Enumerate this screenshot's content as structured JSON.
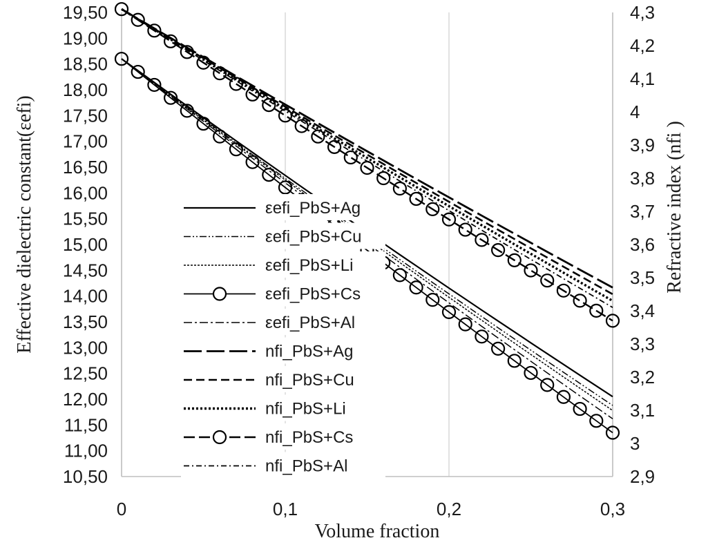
{
  "chart_data": {
    "type": "line",
    "xlabel": "Volume fraction",
    "ylabel": "Effective dielectric constant(εefi)",
    "y2label": "Refractive index (nfi )",
    "xlim": [
      0,
      0.3
    ],
    "ylim": [
      10.5,
      19.5
    ],
    "y2lim": [
      2.9,
      4.3
    ],
    "grid": "vertical",
    "legend_position": "center-left",
    "x_ticks": [
      "0",
      "0,1",
      "0,2",
      "0,3"
    ],
    "y_ticks": [
      "10,50",
      "11,00",
      "11,50",
      "12,00",
      "12,50",
      "13,00",
      "13,50",
      "14,00",
      "14,50",
      "15,00",
      "15,50",
      "16,00",
      "16,50",
      "17,00",
      "17,50",
      "18,00",
      "18,50",
      "19,00",
      "19,50"
    ],
    "y2_ticks": [
      "2,9",
      "3",
      "3,1",
      "3,2",
      "3,3",
      "3,4",
      "3,5",
      "3,6",
      "3,7",
      "3,8",
      "3,9",
      "4",
      "4,1",
      "4,2",
      "4,3"
    ],
    "x": [
      0,
      0.01,
      0.02,
      0.03,
      0.04,
      0.05,
      0.06,
      0.07,
      0.08,
      0.09,
      0.1,
      0.11,
      0.12,
      0.13,
      0.14,
      0.15,
      0.16,
      0.17,
      0.18,
      0.19,
      0.2,
      0.21,
      0.22,
      0.23,
      0.24,
      0.25,
      0.26,
      0.27,
      0.28,
      0.29,
      0.3
    ],
    "series": [
      {
        "name": "εefi_PbS+Ag",
        "axis": "left",
        "style": "solid",
        "start": 18.6,
        "end": 12.05
      },
      {
        "name": "εefi_PbS+Cu",
        "axis": "left",
        "style": "dashdotdot",
        "start": 18.6,
        "end": 11.88
      },
      {
        "name": "εefi_PbS+Li",
        "axis": "left",
        "style": "shortdash",
        "start": 18.6,
        "end": 11.78
      },
      {
        "name": "εefi_PbS+Cs",
        "axis": "left",
        "style": "circles",
        "start": 18.6,
        "end": 11.35
      },
      {
        "name": "εefi_PbS+Al",
        "axis": "left",
        "style": "dashdot",
        "start": 18.6,
        "end": 11.62
      },
      {
        "name": "nfi_PbS+Ag",
        "axis": "right",
        "style": "longdash",
        "start": 4.31,
        "end": 3.47
      },
      {
        "name": "nfi_PbS+Cu",
        "axis": "right",
        "style": "dash",
        "start": 4.31,
        "end": 3.45
      },
      {
        "name": "nfi_PbS+Li",
        "axis": "right",
        "style": "dot",
        "start": 4.31,
        "end": 3.43
      },
      {
        "name": "nfi_PbS+Cs",
        "axis": "right",
        "style": "dash-circles",
        "start": 4.31,
        "end": 3.37
      },
      {
        "name": "nfi_PbS+Al",
        "axis": "right",
        "style": "dashdot-small",
        "start": 4.31,
        "end": 3.41
      }
    ]
  }
}
